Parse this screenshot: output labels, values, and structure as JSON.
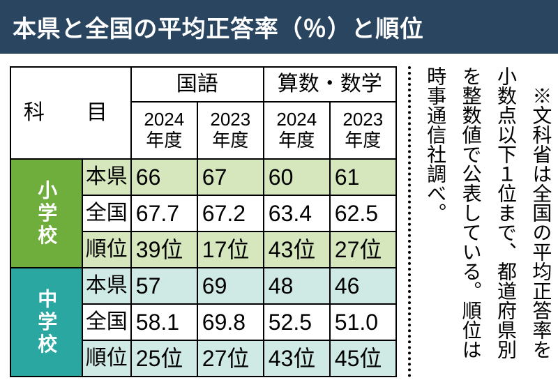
{
  "title": "本県と全国の平均正答率（％）と順位",
  "table": {
    "subject_label": "科　目",
    "group1_label": "国語",
    "group2_label": "算数・数学",
    "year_labels": [
      "2024年度",
      "2023年度",
      "2024年度",
      "2023年度"
    ],
    "schools": [
      {
        "label": "小学校",
        "color": "#6fae3d",
        "rows": [
          {
            "cat": "本県",
            "values": [
              "66",
              "67",
              "60",
              "61"
            ],
            "tint": "tint-green"
          },
          {
            "cat": "全国",
            "values": [
              "67.7",
              "67.2",
              "63.4",
              "62.5"
            ],
            "tint": "tint-white"
          },
          {
            "cat": "順位",
            "values": [
              "39位",
              "17位",
              "43位",
              "27位"
            ],
            "tint": "tint-green"
          }
        ]
      },
      {
        "label": "中学校",
        "color": "#2aa7a0",
        "rows": [
          {
            "cat": "本県",
            "values": [
              "57",
              "69",
              "48",
              "46"
            ],
            "tint": "tint-cyan"
          },
          {
            "cat": "全国",
            "values": [
              "58.1",
              "69.8",
              "52.5",
              "51.0"
            ],
            "tint": "tint-white"
          },
          {
            "cat": "順位",
            "values": [
              "25位",
              "27位",
              "43位",
              "45位"
            ],
            "tint": "tint-cyan"
          }
        ]
      }
    ]
  },
  "note": "　※文科省は全国の平均正答率を小数点以下１位まで、都道府県別を整数値で公表している。順位は時事通信社調べ。",
  "colors": {
    "titlebar_bg": "#2a4560",
    "titlebar_fg": "#ffffff",
    "border": "#000000",
    "tint_green": "#d7e7bd",
    "tint_cyan": "#cfe9e4"
  }
}
